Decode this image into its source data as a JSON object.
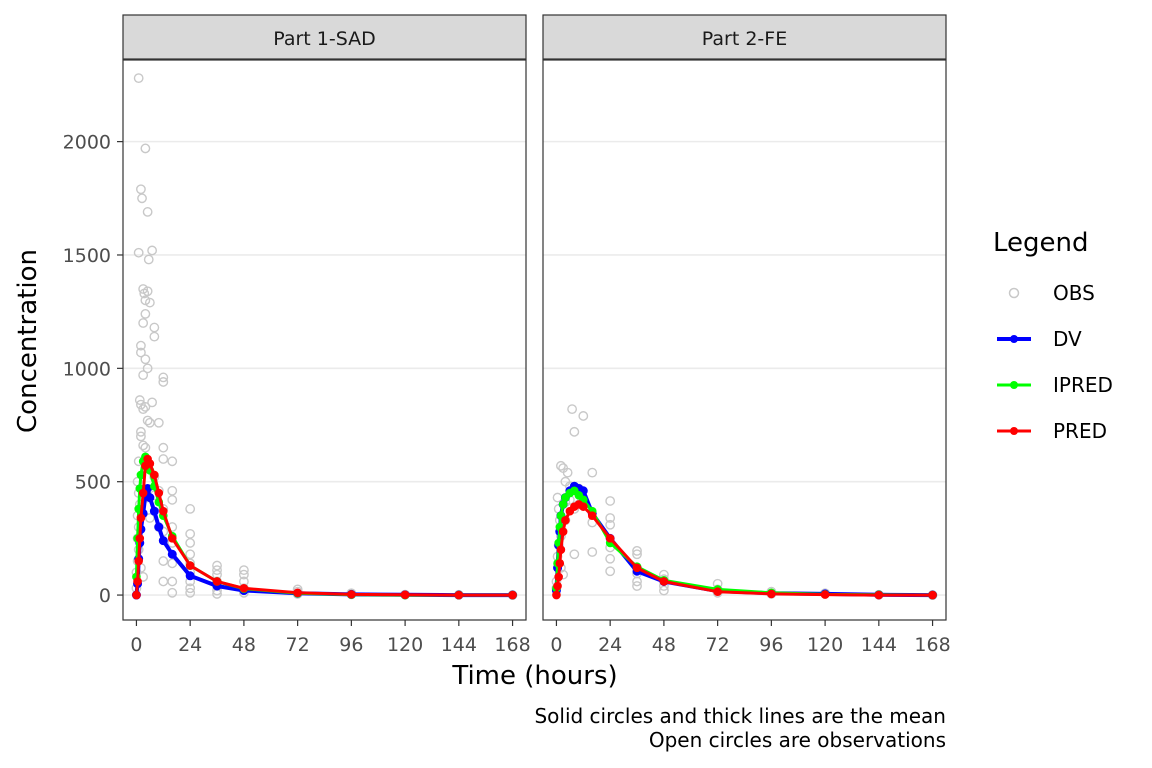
{
  "chart_data": {
    "type": "line",
    "xlabel": "Time (hours)",
    "ylabel": "Concentration",
    "x_ticks": [
      0,
      24,
      48,
      72,
      96,
      120,
      144,
      168
    ],
    "y_ticks": [
      0,
      500,
      1000,
      1500,
      2000
    ],
    "xlim": [
      -6,
      174
    ],
    "ylim": [
      -110,
      2360
    ],
    "grid": "horizontal",
    "legend_position": "right",
    "legend": {
      "title": "Legend",
      "entries": [
        {
          "name": "OBS",
          "color": "#c8c8c8",
          "style": "open-circle"
        },
        {
          "name": "DV",
          "color": "#0000ff",
          "style": "thick-line-solid-circle"
        },
        {
          "name": "IPRED",
          "color": "#00ff00",
          "style": "line-solid-circle"
        },
        {
          "name": "PRED",
          "color": "#ff0000",
          "style": "line-solid-circle"
        }
      ]
    },
    "caption": [
      "Solid circles and thick lines are the mean",
      "Open circles are observations"
    ],
    "panels": [
      {
        "label": "Part 1-SAD",
        "series": [
          {
            "name": "DV",
            "x": [
              0,
              0.5,
              1,
              1.5,
              2,
              3,
              4,
              5,
              6,
              8,
              10,
              12,
              16,
              24,
              36,
              48,
              72,
              96,
              120,
              144,
              168
            ],
            "y": [
              0,
              50,
              160,
              230,
              290,
              360,
              440,
              470,
              430,
              370,
              300,
              240,
              180,
              85,
              40,
              20,
              8,
              3,
              1,
              0,
              0
            ]
          },
          {
            "name": "IPRED",
            "x": [
              0,
              0.5,
              1,
              1.5,
              2,
              3,
              4,
              5,
              6,
              8,
              10,
              12,
              16,
              24,
              36,
              48,
              72,
              96,
              120,
              144,
              168
            ],
            "y": [
              80,
              250,
              380,
              470,
              530,
              590,
              610,
              590,
              550,
              480,
              410,
              350,
              260,
              130,
              60,
              28,
              8,
              2,
              0,
              0,
              0
            ]
          },
          {
            "name": "PRED",
            "x": [
              0,
              0.5,
              1,
              1.5,
              2,
              3,
              4,
              5,
              6,
              8,
              10,
              12,
              16,
              24,
              36,
              48,
              72,
              96,
              120,
              144,
              168
            ],
            "y": [
              0,
              60,
              150,
              250,
              340,
              450,
              570,
              600,
              580,
              530,
              450,
              370,
              250,
              130,
              60,
              30,
              10,
              3,
              1,
              0,
              0
            ]
          }
        ],
        "obs": [
          [
            1,
            2280
          ],
          [
            2,
            1790
          ],
          [
            2.5,
            1750
          ],
          [
            3,
            1350
          ],
          [
            3.5,
            1330
          ],
          [
            4,
            1970
          ],
          [
            4,
            1240
          ],
          [
            5,
            1690
          ],
          [
            5,
            1340
          ],
          [
            5.5,
            1480
          ],
          [
            7,
            1520
          ],
          [
            1,
            1510
          ],
          [
            2,
            1100
          ],
          [
            2,
            1070
          ],
          [
            3,
            1200
          ],
          [
            3,
            970
          ],
          [
            4,
            1040
          ],
          [
            4,
            1300
          ],
          [
            5,
            1000
          ],
          [
            6,
            1290
          ],
          [
            8,
            1180
          ],
          [
            8,
            1140
          ],
          [
            12,
            960
          ],
          [
            12,
            940
          ],
          [
            1.5,
            860
          ],
          [
            2,
            840
          ],
          [
            3,
            820
          ],
          [
            4,
            830
          ],
          [
            5,
            770
          ],
          [
            6,
            760
          ],
          [
            7,
            850
          ],
          [
            10,
            760
          ],
          [
            2,
            720
          ],
          [
            2,
            700
          ],
          [
            3,
            660
          ],
          [
            4,
            650
          ],
          [
            4,
            600
          ],
          [
            5,
            580
          ],
          [
            1,
            590
          ],
          [
            0.5,
            500
          ],
          [
            1,
            450
          ],
          [
            1.5,
            400
          ],
          [
            0.5,
            350
          ],
          [
            1,
            300
          ],
          [
            0.5,
            250
          ],
          [
            0,
            100
          ],
          [
            0,
            30
          ],
          [
            0.5,
            150
          ],
          [
            1,
            200
          ],
          [
            2,
            120
          ],
          [
            3,
            80
          ],
          [
            4,
            560
          ],
          [
            5,
            430
          ],
          [
            6,
            340
          ],
          [
            8,
            520
          ],
          [
            8,
            440
          ],
          [
            10,
            460
          ],
          [
            10,
            300
          ],
          [
            12,
            650
          ],
          [
            12,
            600
          ],
          [
            12,
            380
          ],
          [
            12,
            280
          ],
          [
            12,
            150
          ],
          [
            12,
            60
          ],
          [
            16,
            590
          ],
          [
            16,
            460
          ],
          [
            16,
            420
          ],
          [
            16,
            300
          ],
          [
            16,
            230
          ],
          [
            16,
            140
          ],
          [
            16,
            60
          ],
          [
            16,
            10
          ],
          [
            24,
            380
          ],
          [
            24,
            270
          ],
          [
            24,
            230
          ],
          [
            24,
            180
          ],
          [
            24,
            140
          ],
          [
            24,
            100
          ],
          [
            24,
            60
          ],
          [
            24,
            30
          ],
          [
            24,
            10
          ],
          [
            36,
            130
          ],
          [
            36,
            110
          ],
          [
            36,
            90
          ],
          [
            36,
            60
          ],
          [
            36,
            40
          ],
          [
            36,
            20
          ],
          [
            36,
            5
          ],
          [
            48,
            110
          ],
          [
            48,
            90
          ],
          [
            48,
            60
          ],
          [
            48,
            30
          ],
          [
            48,
            10
          ],
          [
            72,
            25
          ],
          [
            72,
            15
          ],
          [
            72,
            5
          ],
          [
            96,
            8
          ],
          [
            96,
            3
          ],
          [
            120,
            2
          ],
          [
            144,
            1
          ],
          [
            168,
            0
          ]
        ]
      },
      {
        "label": "Part 2-FE",
        "series": [
          {
            "name": "DV",
            "x": [
              0,
              0.5,
              1,
              1.5,
              2,
              3,
              4,
              6,
              8,
              10,
              12,
              16,
              24,
              36,
              48,
              72,
              96,
              120,
              144,
              168
            ],
            "y": [
              20,
              120,
              220,
              280,
              350,
              400,
              430,
              460,
              480,
              470,
              460,
              360,
              250,
              105,
              60,
              18,
              8,
              5,
              1,
              0
            ]
          },
          {
            "name": "IPRED",
            "x": [
              0,
              0.5,
              1,
              1.5,
              2,
              3,
              4,
              6,
              8,
              10,
              12,
              16,
              24,
              36,
              48,
              72,
              96,
              120,
              144,
              168
            ],
            "y": [
              30,
              140,
              230,
              300,
              350,
              400,
              430,
              450,
              460,
              440,
              420,
              370,
              230,
              125,
              65,
              25,
              10,
              3,
              1,
              0
            ]
          },
          {
            "name": "PRED",
            "x": [
              0,
              0.5,
              1,
              1.5,
              2,
              3,
              4,
              6,
              8,
              10,
              12,
              16,
              24,
              36,
              48,
              72,
              96,
              120,
              144,
              168
            ],
            "y": [
              0,
              40,
              80,
              140,
              200,
              280,
              330,
              370,
              390,
              400,
              390,
              350,
              250,
              120,
              60,
              15,
              5,
              2,
              0,
              0
            ]
          }
        ],
        "obs": [
          [
            2,
            570
          ],
          [
            3,
            560
          ],
          [
            4,
            500
          ],
          [
            5,
            540
          ],
          [
            6,
            480
          ],
          [
            7,
            820
          ],
          [
            8,
            720
          ],
          [
            10,
            470
          ],
          [
            12,
            790
          ],
          [
            16,
            540
          ],
          [
            0.5,
            430
          ],
          [
            1,
            380
          ],
          [
            1.5,
            330
          ],
          [
            2,
            260
          ],
          [
            1,
            220
          ],
          [
            0.5,
            170
          ],
          [
            0,
            60
          ],
          [
            0,
            30
          ],
          [
            2,
            120
          ],
          [
            3,
            90
          ],
          [
            4,
            410
          ],
          [
            4,
            330
          ],
          [
            6,
            420
          ],
          [
            8,
            180
          ],
          [
            8,
            380
          ],
          [
            10,
            400
          ],
          [
            12,
            410
          ],
          [
            16,
            320
          ],
          [
            16,
            190
          ],
          [
            24,
            415
          ],
          [
            24,
            340
          ],
          [
            24,
            310
          ],
          [
            24,
            210
          ],
          [
            24,
            160
          ],
          [
            24,
            105
          ],
          [
            36,
            195
          ],
          [
            36,
            180
          ],
          [
            36,
            120
          ],
          [
            36,
            95
          ],
          [
            36,
            60
          ],
          [
            36,
            40
          ],
          [
            48,
            90
          ],
          [
            48,
            70
          ],
          [
            48,
            40
          ],
          [
            48,
            20
          ],
          [
            72,
            50
          ],
          [
            72,
            25
          ],
          [
            72,
            10
          ],
          [
            96,
            15
          ],
          [
            96,
            5
          ],
          [
            120,
            8
          ],
          [
            144,
            1
          ],
          [
            168,
            0
          ]
        ]
      }
    ]
  }
}
